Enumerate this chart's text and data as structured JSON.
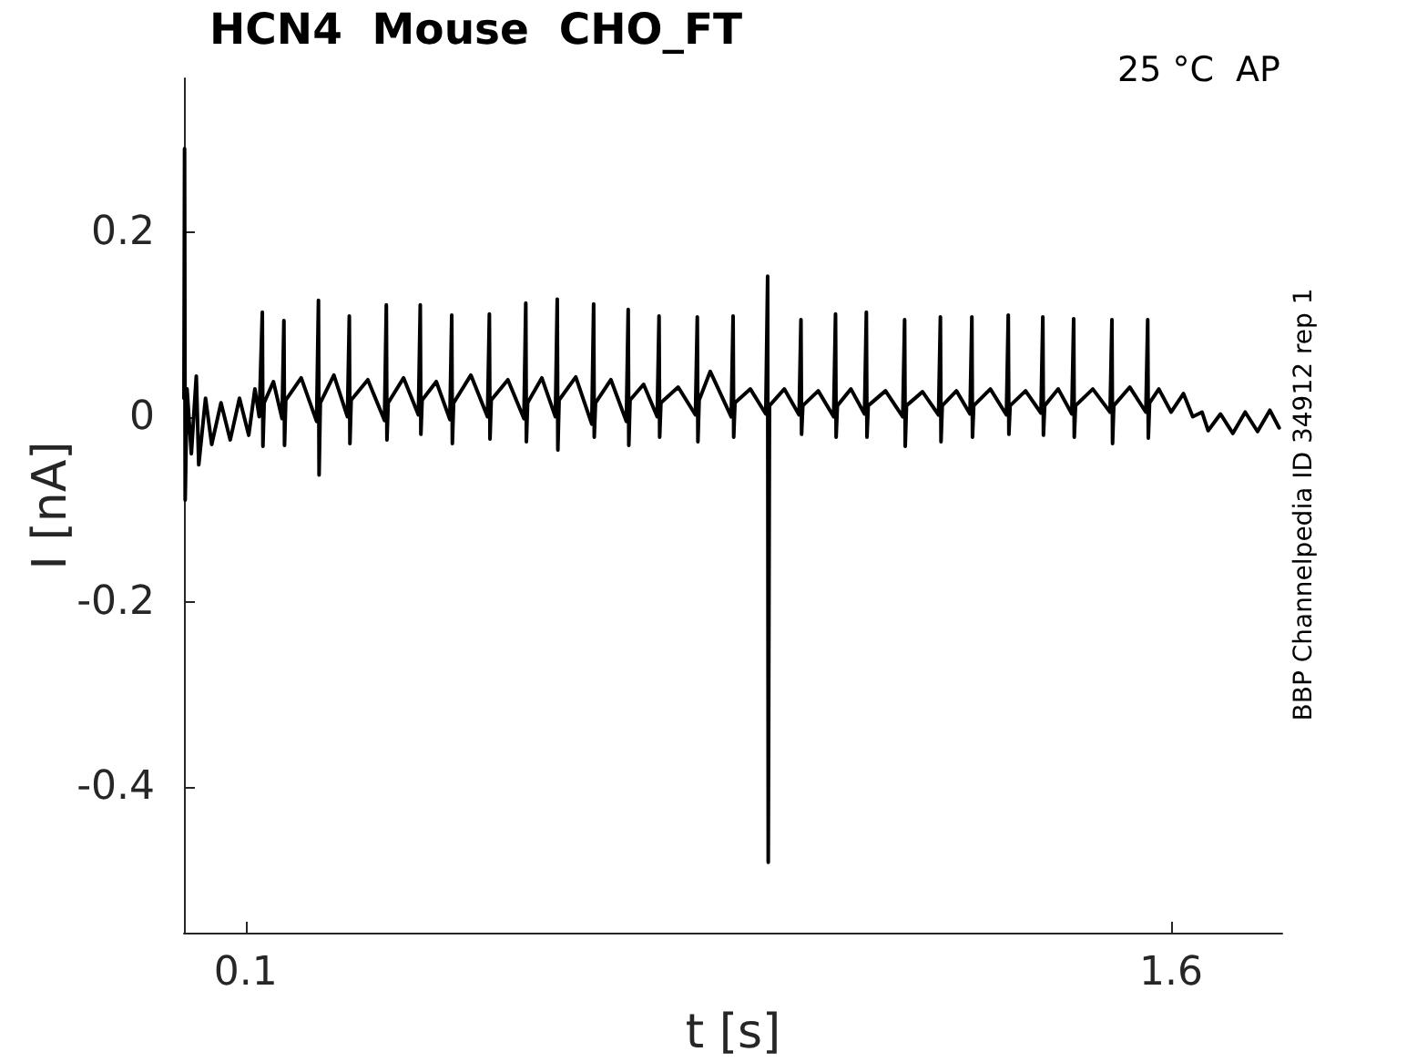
{
  "chart_data": {
    "type": "line",
    "title": "HCN4  Mouse  CHO_FT",
    "xlabel": "t [s]",
    "ylabel": "I [nA]",
    "annotations": [
      "25 °C  AP",
      "BBP Channelpedia ID 34912 rep 1"
    ],
    "x": [
      0.0,
      0.001,
      0.002,
      0.005,
      0.012,
      0.02,
      0.024,
      0.035,
      0.045,
      0.06,
      0.075,
      0.09,
      0.105,
      0.115,
      0.122,
      0.127,
      0.128,
      0.13,
      0.145,
      0.159,
      0.162,
      0.163,
      0.165,
      0.19,
      0.215,
      0.218,
      0.219,
      0.221,
      0.243,
      0.265,
      0.268,
      0.269,
      0.271,
      0.298,
      0.325,
      0.328,
      0.329,
      0.331,
      0.356,
      0.38,
      0.383,
      0.384,
      0.386,
      0.409,
      0.431,
      0.434,
      0.435,
      0.437,
      0.465,
      0.492,
      0.495,
      0.496,
      0.498,
      0.525,
      0.551,
      0.554,
      0.555,
      0.557,
      0.58,
      0.602,
      0.605,
      0.606,
      0.608,
      0.635,
      0.661,
      0.664,
      0.665,
      0.667,
      0.692,
      0.717,
      0.72,
      0.721,
      0.723,
      0.745,
      0.767,
      0.77,
      0.771,
      0.773,
      0.801,
      0.829,
      0.832,
      0.833,
      0.835,
      0.853,
      0.887,
      0.89,
      0.891,
      0.893,
      0.918,
      0.943,
      0.946,
      0.947,
      0.949,
      0.973,
      0.997,
      1.0,
      1.001,
      1.003,
      1.028,
      1.053,
      1.056,
      1.057,
      1.059,
      1.081,
      1.103,
      1.106,
      1.107,
      1.109,
      1.137,
      1.165,
      1.168,
      1.169,
      1.171,
      1.197,
      1.223,
      1.226,
      1.227,
      1.229,
      1.252,
      1.274,
      1.277,
      1.278,
      1.28,
      1.307,
      1.333,
      1.336,
      1.337,
      1.339,
      1.364,
      1.389,
      1.392,
      1.393,
      1.395,
      1.417,
      1.439,
      1.442,
      1.443,
      1.445,
      1.473,
      1.501,
      1.504,
      1.505,
      1.507,
      1.533,
      1.559,
      1.562,
      1.563,
      1.565,
      1.58,
      1.6,
      1.62,
      1.635,
      1.65,
      1.66,
      1.68,
      1.7,
      1.72,
      1.74,
      1.76,
      1.775
    ],
    "values": [
      0.02,
      0.29,
      -0.09,
      0.03,
      -0.04,
      0.044,
      -0.052,
      0.02,
      -0.03,
      0.015,
      -0.025,
      0.02,
      -0.02,
      0.03,
      0.0,
      0.113,
      -0.032,
      0.015,
      0.038,
      -0.002,
      0.104,
      -0.031,
      0.018,
      0.042,
      -0.005,
      0.126,
      -0.063,
      0.015,
      0.045,
      0.0,
      0.109,
      -0.029,
      0.018,
      0.04,
      -0.004,
      0.121,
      -0.025,
      0.015,
      0.042,
      0.002,
      0.121,
      -0.019,
      0.018,
      0.038,
      -0.003,
      0.11,
      -0.029,
      0.015,
      0.045,
      0.0,
      0.111,
      -0.024,
      0.018,
      0.04,
      -0.002,
      0.123,
      -0.027,
      0.015,
      0.042,
      0.0,
      0.127,
      -0.036,
      0.018,
      0.043,
      -0.008,
      0.122,
      -0.022,
      0.015,
      0.04,
      -0.005,
      0.116,
      -0.031,
      0.018,
      0.035,
      0.0,
      0.109,
      -0.022,
      0.015,
      0.032,
      0.002,
      0.108,
      -0.027,
      0.018,
      0.049,
      0.0,
      0.109,
      -0.022,
      0.015,
      0.03,
      0.003,
      0.152,
      -0.482,
      0.012,
      0.03,
      0.002,
      0.105,
      -0.019,
      0.012,
      0.028,
      0.0,
      0.111,
      -0.022,
      0.012,
      0.03,
      0.003,
      0.113,
      -0.022,
      0.012,
      0.028,
      0.0,
      0.105,
      -0.032,
      0.012,
      0.027,
      0.002,
      0.108,
      -0.027,
      0.012,
      0.028,
      0.003,
      0.108,
      -0.022,
      0.012,
      0.03,
      0.002,
      0.11,
      -0.019,
      0.012,
      0.028,
      0.004,
      0.108,
      -0.02,
      0.012,
      0.03,
      0.003,
      0.106,
      -0.022,
      0.012,
      0.03,
      0.005,
      0.105,
      -0.029,
      0.012,
      0.032,
      0.005,
      0.105,
      -0.023,
      0.015,
      0.03,
      0.005,
      0.025,
      0.0,
      0.005,
      -0.015,
      0.003,
      -0.018,
      0.005,
      -0.016,
      0.007,
      -0.012
    ],
    "color": "#000000",
    "marker": "none",
    "xlim": [
      0,
      1.78
    ],
    "ylim": [
      -0.558,
      0.366
    ],
    "xticks": [
      0.1,
      1.6
    ],
    "yticks": [
      -0.4,
      -0.2,
      0,
      0.2
    ]
  }
}
